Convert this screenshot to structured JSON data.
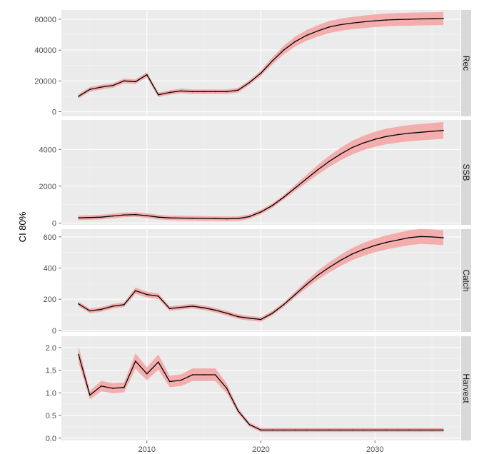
{
  "chart_data": {
    "type": "line",
    "ylabel": "CI 80%",
    "xlabel": "",
    "xlim": [
      2002.5,
      2037.5
    ],
    "x_ticks": [
      "2010",
      "2020",
      "2030"
    ],
    "x_tick_values": [
      2010,
      2020,
      2030
    ],
    "grid": true,
    "band_color": "#f4a6a6",
    "line_color": "#000000",
    "panels": [
      {
        "name": "Rec",
        "ylim": [
          -3000,
          66000
        ],
        "y_ticks": [
          0,
          20000,
          40000,
          60000
        ],
        "y_tick_labels": [
          "0",
          "20000",
          "40000",
          "60000"
        ],
        "band_frac": 0.07,
        "x": [
          2004,
          2005,
          2006,
          2007,
          2008,
          2009,
          2010,
          2011,
          2012,
          2013,
          2014,
          2015,
          2016,
          2017,
          2018,
          2019,
          2020,
          2021,
          2022,
          2023,
          2024,
          2025,
          2026,
          2027,
          2028,
          2029,
          2030,
          2031,
          2032,
          2033,
          2034,
          2035,
          2036
        ],
        "values": [
          10000,
          14500,
          16000,
          17000,
          20000,
          19500,
          24000,
          11000,
          12500,
          13500,
          13000,
          13000,
          13000,
          13000,
          14000,
          19000,
          25000,
          33000,
          40000,
          45500,
          49500,
          52500,
          55000,
          56500,
          57500,
          58300,
          59000,
          59500,
          59800,
          60000,
          60200,
          60300,
          60500
        ]
      },
      {
        "name": "SSB",
        "ylim": [
          -100,
          5600
        ],
        "y_ticks": [
          0,
          2000,
          4000
        ],
        "y_tick_labels": [
          "0",
          "2000",
          "4000"
        ],
        "band_frac": 0.09,
        "x": [
          2004,
          2005,
          2006,
          2007,
          2008,
          2009,
          2010,
          2011,
          2012,
          2013,
          2014,
          2015,
          2016,
          2017,
          2018,
          2019,
          2020,
          2021,
          2022,
          2023,
          2024,
          2025,
          2026,
          2027,
          2028,
          2029,
          2030,
          2031,
          2032,
          2033,
          2034,
          2035,
          2036
        ],
        "values": [
          280,
          300,
          320,
          380,
          440,
          460,
          400,
          320,
          280,
          270,
          260,
          250,
          240,
          230,
          240,
          350,
          600,
          950,
          1400,
          1900,
          2400,
          2900,
          3350,
          3750,
          4100,
          4350,
          4550,
          4700,
          4800,
          4880,
          4930,
          4980,
          5030
        ]
      },
      {
        "name": "Catch",
        "ylim": [
          -10,
          650
        ],
        "y_ticks": [
          0,
          200,
          400,
          600
        ],
        "y_tick_labels": [
          "0",
          "200",
          "400",
          "600"
        ],
        "band_frac": 0.08,
        "x": [
          2004,
          2005,
          2006,
          2007,
          2008,
          2009,
          2010,
          2011,
          2012,
          2013,
          2014,
          2015,
          2016,
          2017,
          2018,
          2019,
          2020,
          2021,
          2022,
          2023,
          2024,
          2025,
          2026,
          2027,
          2028,
          2029,
          2030,
          2031,
          2032,
          2033,
          2034,
          2035,
          2036
        ],
        "values": [
          170,
          125,
          135,
          155,
          165,
          255,
          230,
          220,
          140,
          148,
          155,
          145,
          130,
          110,
          88,
          78,
          70,
          110,
          165,
          230,
          295,
          355,
          405,
          450,
          490,
          520,
          545,
          565,
          580,
          595,
          603,
          600,
          595
        ]
      },
      {
        "name": "Harvest",
        "ylim": [
          -0.05,
          2.25
        ],
        "y_ticks": [
          0.0,
          0.5,
          1.0,
          1.5,
          2.0
        ],
        "y_tick_labels": [
          "0.0",
          "0.5",
          "1.0",
          "1.5",
          "2.0"
        ],
        "band_frac": 0.1,
        "x": [
          2004,
          2005,
          2006,
          2007,
          2008,
          2009,
          2010,
          2011,
          2012,
          2013,
          2014,
          2015,
          2016,
          2017,
          2018,
          2019,
          2020,
          2021,
          2022,
          2023,
          2024,
          2025,
          2026,
          2027,
          2028,
          2029,
          2030,
          2031,
          2032,
          2033,
          2034,
          2035,
          2036
        ],
        "values": [
          1.85,
          0.95,
          1.15,
          1.1,
          1.12,
          1.7,
          1.42,
          1.68,
          1.25,
          1.28,
          1.4,
          1.4,
          1.4,
          1.1,
          0.6,
          0.3,
          0.18,
          0.18,
          0.18,
          0.18,
          0.18,
          0.18,
          0.18,
          0.18,
          0.18,
          0.18,
          0.18,
          0.18,
          0.18,
          0.18,
          0.18,
          0.18,
          0.18
        ]
      }
    ]
  }
}
